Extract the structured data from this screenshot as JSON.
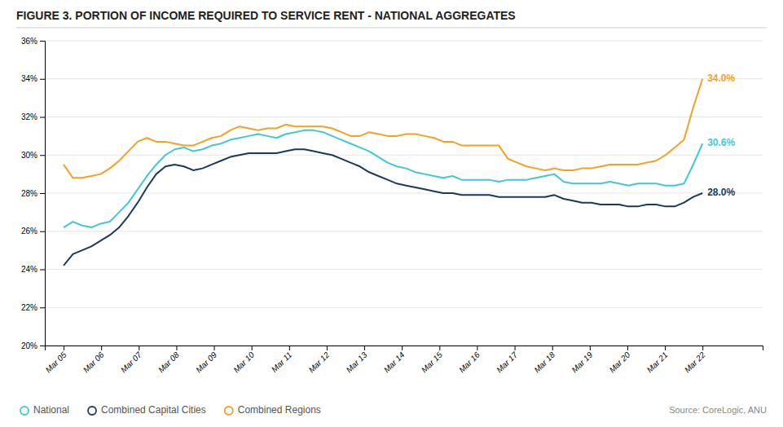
{
  "chart_data": {
    "type": "line",
    "title": "FIGURE 3. PORTION OF INCOME REQUIRED TO SERVICE RENT - NATIONAL AGGREGATES",
    "source": "Source: CoreLogic, ANU",
    "x": [
      0,
      0.246377,
      0.492754,
      0.73913,
      0.985507,
      1.231884,
      1.478261,
      1.724638,
      1.971014,
      2.217391,
      2.463768,
      2.710145,
      2.956522,
      3.202899,
      3.449275,
      3.695652,
      3.942029,
      4.188406,
      4.434783,
      4.681159,
      4.927536,
      5.173913,
      5.42029,
      5.666667,
      5.913043,
      6.15942,
      6.405797,
      6.652174,
      6.898551,
      7.144928,
      7.391304,
      7.637681,
      7.884058,
      8.130435,
      8.376812,
      8.623188,
      8.869565,
      9.115942,
      9.362319,
      9.608696,
      9.855072,
      10.101449,
      10.347826,
      10.594203,
      10.84058,
      11.086957,
      11.333333,
      11.57971,
      11.826087,
      12.072464,
      12.318841,
      12.565217,
      12.811594,
      13.057971,
      13.304348,
      13.550725,
      13.797101,
      14.043478,
      14.289855,
      14.536232,
      14.782609,
      15.028986,
      15.275362,
      15.521739,
      15.768116,
      16.014493,
      16.26087,
      16.507246,
      16.753623,
      17
    ],
    "xlim": [
      -0.5,
      18.6
    ],
    "xticks": [
      {
        "value": 0,
        "label": "Mar 05"
      },
      {
        "value": 1,
        "label": "Mar 06"
      },
      {
        "value": 2,
        "label": "Mar 07"
      },
      {
        "value": 3,
        "label": "Mar 08"
      },
      {
        "value": 4,
        "label": "Mar 09"
      },
      {
        "value": 5,
        "label": "Mar 10"
      },
      {
        "value": 6,
        "label": "Mar 11"
      },
      {
        "value": 7,
        "label": "Mar 12"
      },
      {
        "value": 8,
        "label": "Mar 13"
      },
      {
        "value": 9,
        "label": "Mar 14"
      },
      {
        "value": 10,
        "label": "Mar 15"
      },
      {
        "value": 11,
        "label": "Mar 16"
      },
      {
        "value": 12,
        "label": "Mar 17"
      },
      {
        "value": 13,
        "label": "Mar 18"
      },
      {
        "value": 14,
        "label": "Mar 19"
      },
      {
        "value": 15,
        "label": "Mar 20"
      },
      {
        "value": 16,
        "label": "Mar 21"
      },
      {
        "value": 17,
        "label": "Mar 22"
      }
    ],
    "ylim": [
      20,
      36
    ],
    "yticks": [
      {
        "value": 20,
        "label": "20%"
      },
      {
        "value": 22,
        "label": "22%"
      },
      {
        "value": 24,
        "label": "24%"
      },
      {
        "value": 26,
        "label": "26%"
      },
      {
        "value": 28,
        "label": "28%"
      },
      {
        "value": 30,
        "label": "30%"
      },
      {
        "value": 32,
        "label": "32%"
      },
      {
        "value": 34,
        "label": "34%"
      },
      {
        "value": 36,
        "label": "36%"
      }
    ],
    "grid": true,
    "legend": "lower left",
    "series": [
      {
        "name": "National",
        "color": "#3EC8D8",
        "values": [
          26.2,
          26.5,
          26.3,
          26.2,
          26.4,
          26.5,
          27.0,
          27.5,
          28.2,
          28.9,
          29.5,
          30.0,
          30.3,
          30.4,
          30.2,
          30.3,
          30.5,
          30.6,
          30.8,
          30.9,
          31.0,
          31.1,
          31.0,
          30.9,
          31.1,
          31.2,
          31.3,
          31.3,
          31.2,
          31.0,
          30.8,
          30.6,
          30.4,
          30.2,
          29.9,
          29.6,
          29.4,
          29.3,
          29.1,
          29.0,
          28.9,
          28.8,
          28.9,
          28.7,
          28.7,
          28.7,
          28.7,
          28.6,
          28.7,
          28.7,
          28.7,
          28.8,
          28.9,
          29.0,
          28.6,
          28.5,
          28.5,
          28.5,
          28.5,
          28.6,
          28.5,
          28.4,
          28.5,
          28.5,
          28.5,
          28.4,
          28.4,
          28.5,
          29.5,
          30.6
        ]
      },
      {
        "name": "Combined Capital Cities",
        "color": "#1A3A5C",
        "values": [
          24.2,
          24.8,
          25.0,
          25.2,
          25.5,
          25.8,
          26.2,
          26.8,
          27.5,
          28.3,
          29.0,
          29.4,
          29.5,
          29.4,
          29.2,
          29.3,
          29.5,
          29.7,
          29.9,
          30.0,
          30.1,
          30.1,
          30.1,
          30.1,
          30.2,
          30.3,
          30.3,
          30.2,
          30.1,
          30.0,
          29.8,
          29.6,
          29.4,
          29.1,
          28.9,
          28.7,
          28.5,
          28.4,
          28.3,
          28.2,
          28.1,
          28.0,
          28.0,
          27.9,
          27.9,
          27.9,
          27.9,
          27.8,
          27.8,
          27.8,
          27.8,
          27.8,
          27.8,
          27.9,
          27.7,
          27.6,
          27.5,
          27.5,
          27.4,
          27.4,
          27.4,
          27.3,
          27.3,
          27.4,
          27.4,
          27.3,
          27.3,
          27.5,
          27.8,
          28.0
        ]
      },
      {
        "name": "Combined Regions",
        "color": "#F5A020",
        "values": [
          29.5,
          28.8,
          28.8,
          28.9,
          29.0,
          29.3,
          29.7,
          30.2,
          30.7,
          30.9,
          30.7,
          30.7,
          30.6,
          30.5,
          30.5,
          30.7,
          30.9,
          31.0,
          31.3,
          31.5,
          31.4,
          31.3,
          31.4,
          31.4,
          31.6,
          31.5,
          31.5,
          31.5,
          31.5,
          31.4,
          31.2,
          31.0,
          31.0,
          31.2,
          31.1,
          31.0,
          31.0,
          31.1,
          31.1,
          31.0,
          30.9,
          30.7,
          30.7,
          30.5,
          30.5,
          30.5,
          30.5,
          30.5,
          29.8,
          29.6,
          29.4,
          29.3,
          29.2,
          29.3,
          29.2,
          29.2,
          29.3,
          29.3,
          29.4,
          29.5,
          29.5,
          29.5,
          29.5,
          29.6,
          29.7,
          30.0,
          30.4,
          30.8,
          32.5,
          34.0
        ]
      }
    ],
    "annotations": [
      {
        "text": "30.6%",
        "x": 17,
        "y": 30.6,
        "color": "#3EC8D8"
      },
      {
        "text": "28.0%",
        "x": 17,
        "y": 28.0,
        "color": "#1A3A5C"
      },
      {
        "text": "34.0%",
        "x": 17,
        "y": 34.0,
        "color": "#F5A020"
      }
    ]
  }
}
